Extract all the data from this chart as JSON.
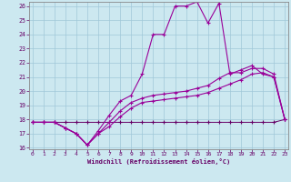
{
  "xlabel": "Windchill (Refroidissement éolien,°C)",
  "background_color": "#cce8f0",
  "grid_color": "#a0c8d8",
  "line_color": "#990099",
  "line_color2": "#660066",
  "xmin": 0,
  "xmax": 23,
  "ymin": 16,
  "ymax": 26,
  "line1_x": [
    0,
    1,
    2,
    3,
    4,
    5,
    6,
    7,
    8,
    9,
    10,
    11,
    12,
    13,
    14,
    15,
    16,
    17,
    18,
    19,
    20,
    21,
    22,
    23
  ],
  "line1_y": [
    17.8,
    17.8,
    17.8,
    17.4,
    17.0,
    16.2,
    17.0,
    17.5,
    18.2,
    18.8,
    19.2,
    19.3,
    19.4,
    19.5,
    19.6,
    19.7,
    19.9,
    20.2,
    20.5,
    20.8,
    21.2,
    21.3,
    21.0,
    18.0
  ],
  "line2_x": [
    0,
    1,
    2,
    3,
    4,
    5,
    6,
    7,
    8,
    9,
    10,
    11,
    12,
    13,
    14,
    15,
    16,
    17,
    18,
    19,
    20,
    21,
    22,
    23
  ],
  "line2_y": [
    17.8,
    17.8,
    17.8,
    17.4,
    17.0,
    16.2,
    17.2,
    18.3,
    19.3,
    19.7,
    21.2,
    24.0,
    24.0,
    26.0,
    26.0,
    26.3,
    24.8,
    26.2,
    21.2,
    21.5,
    21.8,
    21.2,
    21.0,
    18.0
  ],
  "line3_x": [
    0,
    1,
    2,
    3,
    4,
    5,
    6,
    7,
    8,
    9,
    10,
    11,
    12,
    13,
    14,
    15,
    16,
    17,
    18,
    19,
    20,
    21,
    22,
    23
  ],
  "line3_y": [
    17.8,
    17.8,
    17.8,
    17.4,
    17.0,
    16.2,
    17.0,
    17.8,
    18.6,
    19.2,
    19.5,
    19.7,
    19.8,
    19.9,
    20.0,
    20.2,
    20.4,
    20.9,
    21.3,
    21.3,
    21.6,
    21.6,
    21.2,
    18.0
  ],
  "line4_x": [
    0,
    1,
    2,
    3,
    4,
    5,
    6,
    7,
    8,
    9,
    10,
    11,
    12,
    13,
    14,
    15,
    16,
    17,
    18,
    19,
    20,
    21,
    22,
    23
  ],
  "line4_y": [
    17.8,
    17.8,
    17.8,
    17.8,
    17.8,
    17.8,
    17.8,
    17.8,
    17.8,
    17.8,
    17.8,
    17.8,
    17.8,
    17.8,
    17.8,
    17.8,
    17.8,
    17.8,
    17.8,
    17.8,
    17.8,
    17.8,
    17.8,
    18.0
  ],
  "yticks": [
    16,
    17,
    18,
    19,
    20,
    21,
    22,
    23,
    24,
    25,
    26
  ],
  "xticks": [
    0,
    1,
    2,
    3,
    4,
    5,
    6,
    7,
    8,
    9,
    10,
    11,
    12,
    13,
    14,
    15,
    16,
    17,
    18,
    19,
    20,
    21,
    22,
    23
  ]
}
